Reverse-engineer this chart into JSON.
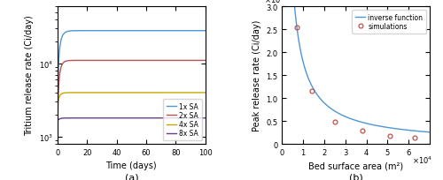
{
  "panel_a": {
    "xlabel": "Time (days)",
    "ylabel": "Tritium release rate (Ci/day)",
    "label_a": "(a)",
    "xlim": [
      0,
      100
    ],
    "ylim_log": [
      800,
      60000
    ],
    "xticks": [
      0,
      20,
      40,
      60,
      80,
      100
    ],
    "curves": [
      {
        "label": "1x SA",
        "color": "#4c96d7",
        "steady_state": 28000,
        "rise_rate": 0.55,
        "initial": 1800
      },
      {
        "label": "2x SA",
        "color": "#b85450",
        "steady_state": 11000,
        "rise_rate": 0.65,
        "initial": 1200
      },
      {
        "label": "4x SA",
        "color": "#c8a800",
        "steady_state": 4000,
        "rise_rate": 0.75,
        "initial": 2800
      },
      {
        "label": "8x SA",
        "color": "#6a3d8f",
        "steady_state": 1800,
        "rise_rate": 0.8,
        "initial": 1650
      }
    ]
  },
  "panel_b": {
    "xlabel": "Bed surface area (m²)",
    "ylabel": "Peak release rate (Ci/day)",
    "label_b": "(b)",
    "xlim": [
      0,
      70000.0
    ],
    "ylim": [
      0,
      30000.0
    ],
    "xticks": [
      0,
      10000.0,
      20000.0,
      30000.0,
      40000.0,
      50000.0,
      60000.0
    ],
    "yticks": [
      0,
      5000.0,
      10000.0,
      15000.0,
      20000.0,
      25000.0,
      30000.0
    ],
    "sim_x": [
      7000,
      14000,
      25000,
      38000,
      51000,
      63000
    ],
    "sim_y": [
      25500,
      11500,
      4900,
      2800,
      1750,
      1300
    ],
    "curve_color": "#4c96d7",
    "sim_color": "#c05050",
    "inverse_k": 178500000.0,
    "curve_x_start": 4000,
    "curve_x_end": 70000,
    "legend_line": "inverse function",
    "legend_marker": "simulations"
  }
}
